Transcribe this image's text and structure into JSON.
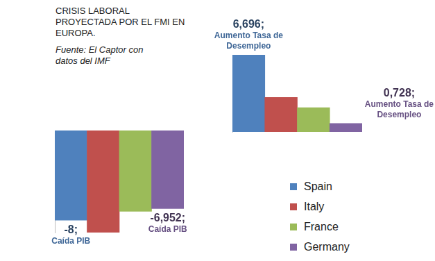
{
  "title": "CRISIS LABORAL PROYECTADA POR EL FMI EN EUROPA.",
  "subtitle": "Fuente: El Captor con datos del IMF",
  "chart_data": [
    {
      "type": "bar",
      "categories": [
        "Spain",
        "Italy",
        "France",
        "Germany"
      ],
      "values": [
        6.696,
        3.0,
        2.1,
        0.728
      ],
      "value_labels": [
        "6,696;\nAumento Tasa de\nDesempleo",
        null,
        null,
        "0,728;\nAumento Tasa de\nDesempleo"
      ],
      "colors": [
        "#4f81bd",
        "#c0504d",
        "#9bbb59",
        "#8064a2"
      ],
      "ylim": [
        0,
        6.696
      ],
      "grid": false,
      "tick_labels": false,
      "data_labels": true
    },
    {
      "type": "bar",
      "categories": [
        "Spain",
        "Italy",
        "France",
        "Germany"
      ],
      "values": [
        -8,
        -9.1,
        -7.2,
        -6.952
      ],
      "value_labels": [
        "-8;\nCaída PIB",
        null,
        null,
        "-6,952;\nCaída PIB"
      ],
      "colors": [
        "#4f81bd",
        "#c0504d",
        "#9bbb59",
        "#8064a2"
      ],
      "ylim": [
        -9.1,
        0
      ],
      "grid": false,
      "tick_labels": false,
      "data_labels": true,
      "legend": "bottom-right"
    }
  ]
}
